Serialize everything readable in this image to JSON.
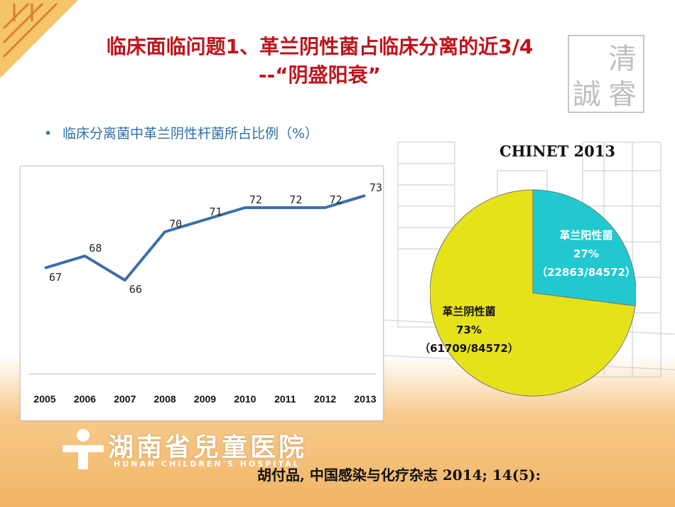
{
  "slide": {
    "title_line1": "临床面临问题1、革兰阴性菌占临床分离的近3/4",
    "title_line2": "--“阴盛阳衰”",
    "bullet_text": "临床分离菌中革兰阴性杆菌所占比例（%）",
    "bullet_symbol": "•",
    "pie_heading": "CHINET 2013",
    "citation": "胡付品, 中国感染与化疗杂志 2014; 14(5):",
    "hospital_name_cn": "湖南省兒童医院",
    "hospital_name_en": "HUNAN CHILDREN'S HOSPITAL",
    "seal_text": [
      "清",
      "誠",
      "睿"
    ]
  },
  "colors": {
    "title": "#c0131b",
    "bullet": "#2f6fa8",
    "line": "#3b6fab",
    "pie_negative": "#e6e21a",
    "pie_positive": "#22c8d0"
  },
  "chart_data": [
    {
      "type": "line",
      "x": [
        "2005",
        "2006",
        "2007",
        "2008",
        "2009",
        "2010",
        "2011",
        "2012",
        "2013"
      ],
      "series": [
        {
          "values": [
            67,
            68,
            66,
            70,
            71,
            72,
            72,
            72,
            73
          ]
        }
      ],
      "data_labels": [
        "67",
        "68",
        "66",
        "70",
        "71",
        "72",
        "72",
        "72",
        "73"
      ],
      "ylim": [
        60,
        74
      ],
      "grid": false,
      "legend": "none"
    },
    {
      "type": "pie",
      "title": "CHINET 2013",
      "slices": [
        {
          "name": "革兰阳性菌",
          "value": 27,
          "percent_label": "27%",
          "count_label": "（22863/84572）"
        },
        {
          "name": "革兰阴性菌",
          "value": 73,
          "percent_label": "73%",
          "count_label": "（61709/84572）"
        }
      ]
    }
  ]
}
